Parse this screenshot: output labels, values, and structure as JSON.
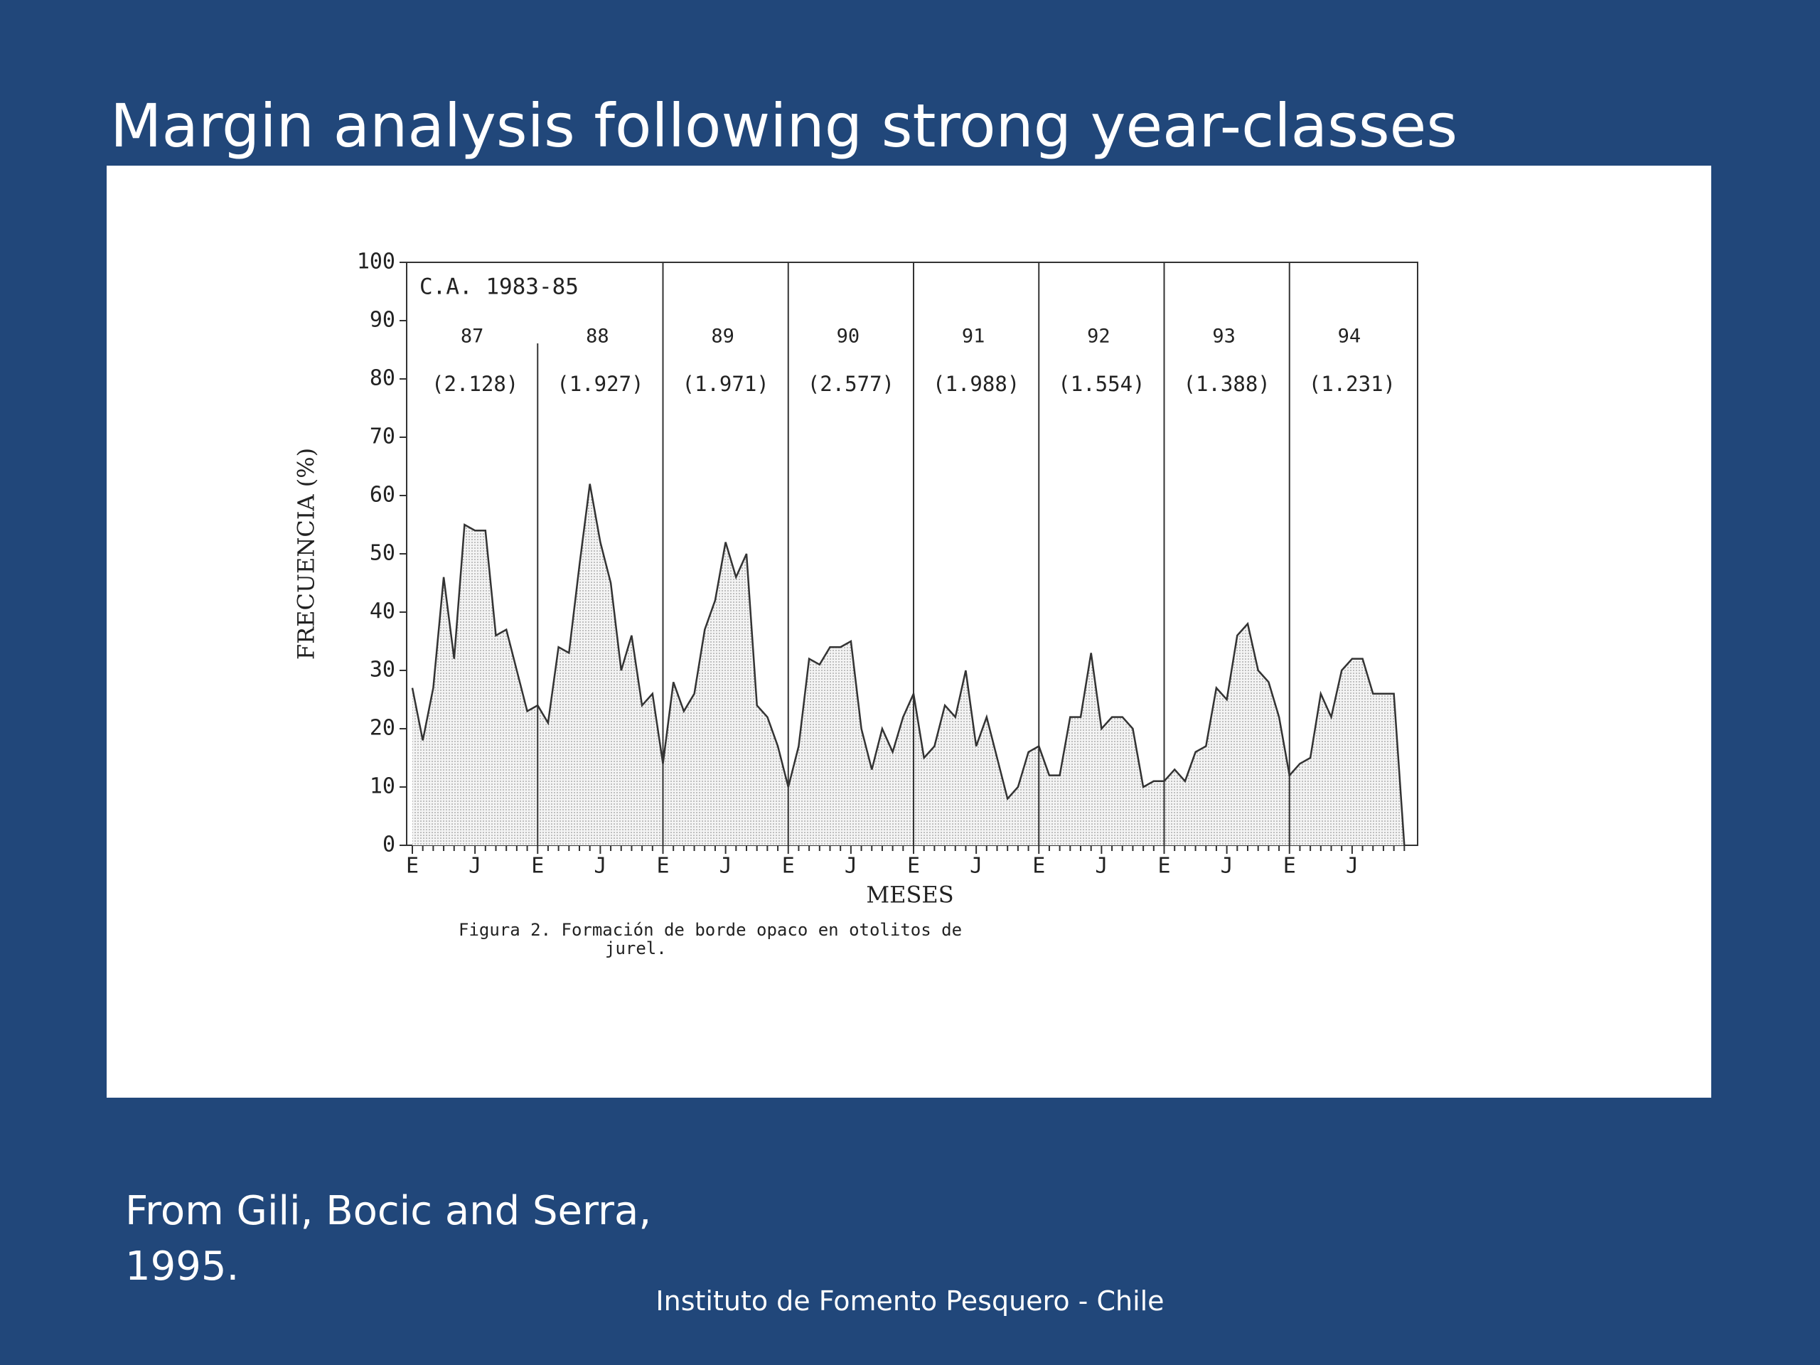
{
  "slide": {
    "title": "Margin analysis following strong year-classes",
    "citation": [
      "From Gili, Bocic and Serra,",
      "1995."
    ],
    "footer": "Instituto de Fomento Pesquero - Chile"
  },
  "chart_data": {
    "type": "area",
    "y_label": "FRECUENCIA (%)",
    "x_label": "MESES",
    "caption": [
      "Figura 2. Formación de borde opaco en otolitos de",
      "jurel."
    ],
    "annotation": "C.A. 1983-85",
    "panels": [
      {
        "label": "87",
        "n": "(2.128)"
      },
      {
        "label": "88",
        "n": "(1.927)"
      },
      {
        "label": "89",
        "n": "(1.971)"
      },
      {
        "label": "90",
        "n": "(2.577)"
      },
      {
        "label": "91",
        "n": "(1.988)"
      },
      {
        "label": "92",
        "n": "(1.554)"
      },
      {
        "label": "93",
        "n": "(1.388)"
      },
      {
        "label": "94",
        "n": "(1.231)"
      }
    ],
    "categories": [
      "E",
      null,
      null,
      null,
      null,
      null,
      "J",
      null,
      null,
      null,
      null,
      null,
      "E",
      null,
      null,
      null,
      null,
      null,
      "J",
      null,
      null,
      null,
      null,
      null,
      "E",
      null,
      null,
      null,
      null,
      null,
      "J",
      null,
      null,
      null,
      null,
      null,
      "E",
      null,
      null,
      null,
      null,
      null,
      "J",
      null,
      null,
      null,
      null,
      null,
      "E",
      null,
      null,
      null,
      null,
      null,
      "J",
      null,
      null,
      null,
      null,
      null,
      "E",
      null,
      null,
      null,
      null,
      null,
      "J",
      null,
      null,
      null,
      null,
      null,
      "E",
      null,
      null,
      null,
      null,
      null,
      "J",
      null,
      null,
      null,
      null,
      null,
      "E",
      null,
      null,
      null,
      null,
      null,
      "J",
      null,
      null,
      null,
      null,
      null
    ],
    "values": [
      27,
      18,
      27,
      46,
      32,
      55,
      54,
      54,
      36,
      37,
      30,
      23,
      24,
      21,
      34,
      33,
      48,
      62,
      52,
      45,
      30,
      36,
      24,
      26,
      14,
      28,
      23,
      26,
      37,
      42,
      52,
      46,
      50,
      24,
      22,
      17,
      10,
      17,
      32,
      31,
      34,
      34,
      35,
      20,
      13,
      20,
      16,
      22,
      26,
      15,
      17,
      24,
      22,
      30,
      17,
      22,
      15,
      8,
      10,
      16,
      17,
      12,
      12,
      22,
      22,
      33,
      20,
      22,
      22,
      20,
      10,
      11,
      11,
      13,
      11,
      16,
      17,
      27,
      25,
      36,
      38,
      30,
      28,
      22,
      12,
      14,
      15,
      26,
      22,
      30,
      32,
      32,
      26,
      26,
      26,
      0
    ],
    "color": "#333333",
    "ylim": [
      0,
      100
    ],
    "yticks": [
      0,
      10,
      20,
      30,
      40,
      50,
      60,
      70,
      80,
      90,
      100
    ]
  }
}
